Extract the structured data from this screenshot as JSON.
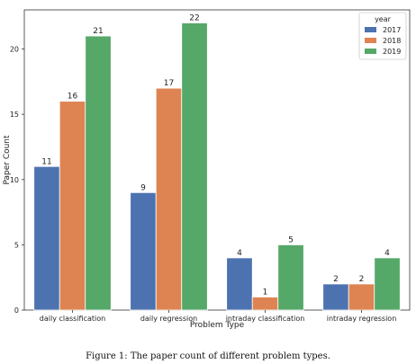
{
  "chart_data": {
    "type": "bar",
    "title": "",
    "xlabel": "Problem Type",
    "ylabel": "Paper Count",
    "categories": [
      "daily classification",
      "daily regression",
      "intraday classification",
      "intraday regression"
    ],
    "series": [
      {
        "name": "2017",
        "color": "#4c72b0",
        "values": [
          11,
          9,
          4,
          2
        ]
      },
      {
        "name": "2018",
        "color": "#dd8452",
        "values": [
          16,
          17,
          1,
          2
        ]
      },
      {
        "name": "2019",
        "color": "#55a868",
        "values": [
          21,
          22,
          5,
          4
        ]
      }
    ],
    "ylim": [
      0,
      23
    ],
    "yticks": [
      0,
      5,
      10,
      15,
      20
    ],
    "legend": {
      "title": "year",
      "placement": "top-right"
    },
    "grid": false,
    "data_labels": true
  },
  "caption": "Figure 1: The paper count of different problem types."
}
